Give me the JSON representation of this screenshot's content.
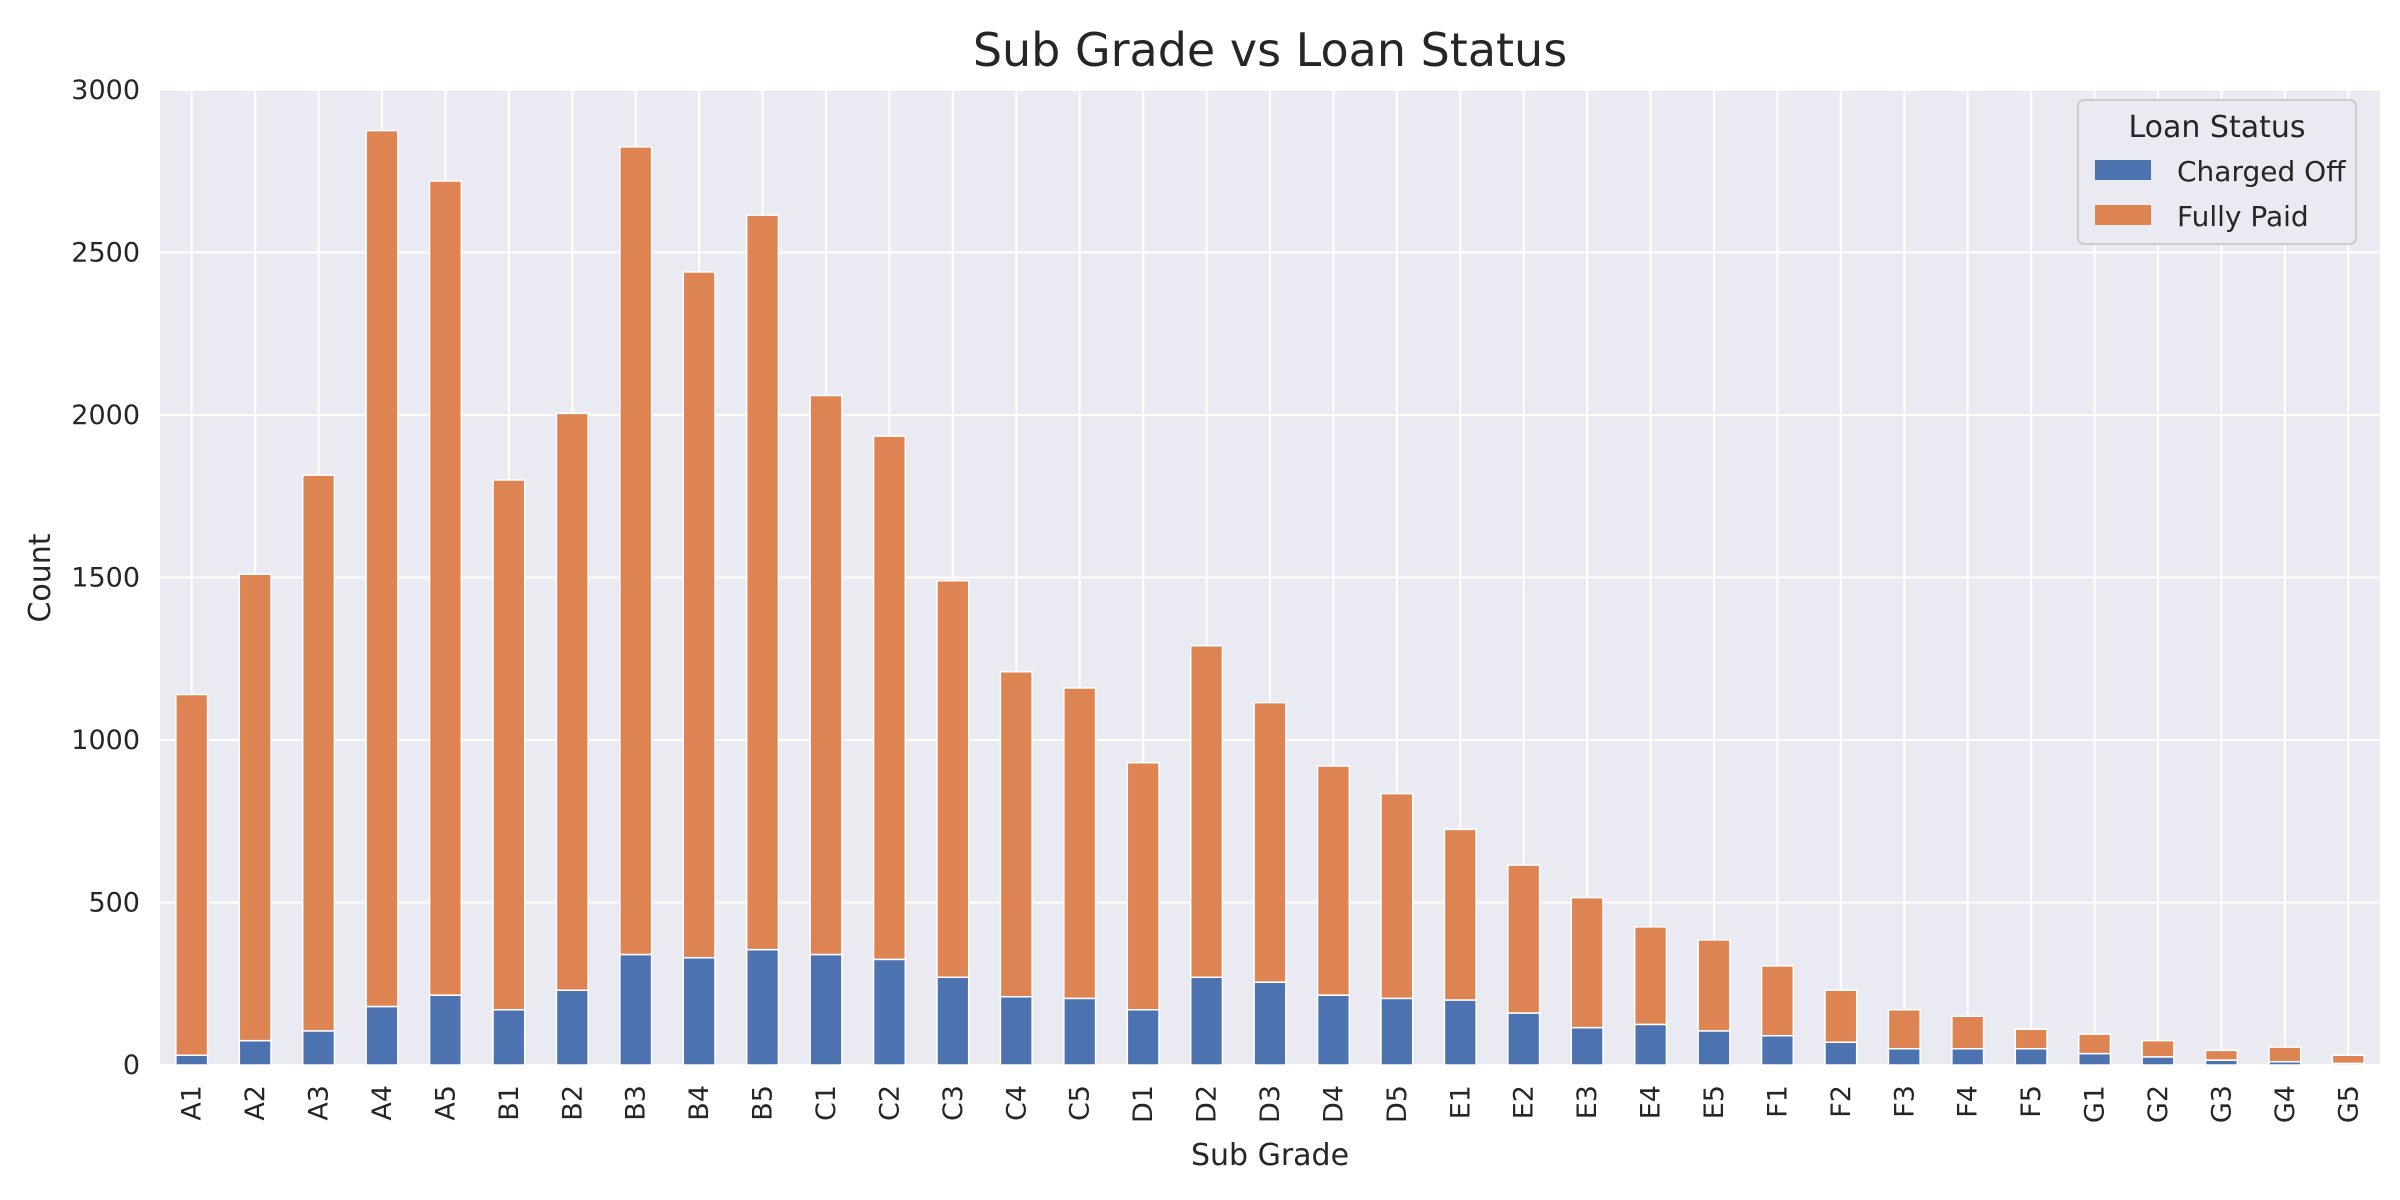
{
  "chart_data": {
    "type": "bar",
    "stacked": true,
    "title": "Sub Grade vs Loan Status",
    "xlabel": "Sub Grade",
    "ylabel": "Count",
    "ylim": [
      0,
      3000
    ],
    "yticks": [
      0,
      500,
      1000,
      1500,
      2000,
      2500,
      3000
    ],
    "grid": true,
    "legend_placement": "top-right",
    "legend_title": "Loan Status",
    "categories": [
      "A1",
      "A2",
      "A3",
      "A4",
      "A5",
      "B1",
      "B2",
      "B3",
      "B4",
      "B5",
      "C1",
      "C2",
      "C3",
      "C4",
      "C5",
      "D1",
      "D2",
      "D3",
      "D4",
      "D5",
      "E1",
      "E2",
      "E3",
      "E4",
      "E5",
      "F1",
      "F2",
      "F3",
      "F4",
      "F5",
      "G1",
      "G2",
      "G3",
      "G4",
      "G5"
    ],
    "series": [
      {
        "name": "Charged Off",
        "color": "#4c72b0",
        "values": [
          30,
          75,
          105,
          180,
          215,
          170,
          230,
          340,
          330,
          355,
          340,
          325,
          270,
          210,
          205,
          170,
          270,
          255,
          215,
          205,
          200,
          160,
          115,
          125,
          105,
          90,
          70,
          50,
          50,
          50,
          35,
          25,
          15,
          10,
          5
        ]
      },
      {
        "name": "Fully Paid",
        "color": "#dd8452",
        "values": [
          1110,
          1435,
          1710,
          2695,
          2505,
          1630,
          1775,
          2485,
          2110,
          2260,
          1720,
          1610,
          1220,
          1000,
          955,
          760,
          1020,
          860,
          705,
          630,
          525,
          455,
          400,
          300,
          280,
          215,
          160,
          120,
          100,
          60,
          60,
          50,
          30,
          45,
          25
        ]
      }
    ]
  }
}
